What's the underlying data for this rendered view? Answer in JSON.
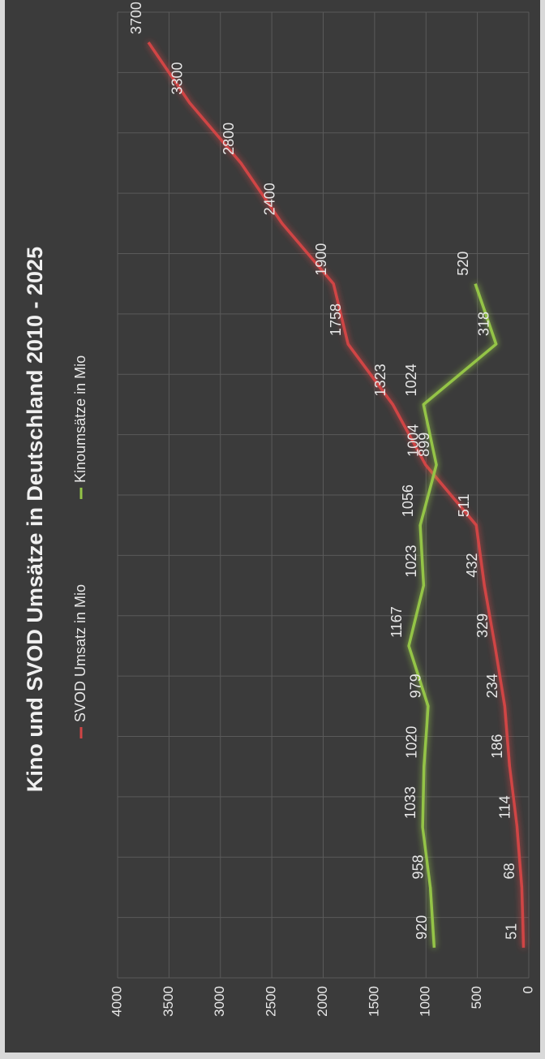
{
  "chart_data": {
    "type": "line",
    "title": "Kino und SVOD Umsätze in Deutschland 2010 - 2025",
    "categories": [
      null,
      null,
      null,
      null,
      null,
      null,
      null,
      null,
      null,
      null,
      null,
      null,
      null,
      null,
      null,
      null
    ],
    "series": [
      {
        "name": "SVOD Umsatz in Mio",
        "color": "#d04545",
        "values": [
          51,
          68,
          114,
          186,
          234,
          329,
          432,
          511,
          1004,
          1323,
          1758,
          1900,
          2400,
          2800,
          3300,
          3700
        ]
      },
      {
        "name": "Kinoumsätze in Mio",
        "color": "#94c447",
        "values": [
          920,
          958,
          1033,
          1020,
          979,
          1167,
          1023,
          1056,
          899,
          1024,
          318,
          520,
          null,
          null,
          null,
          null
        ]
      }
    ],
    "ylim": [
      0,
      4000
    ],
    "yticks": [
      0,
      500,
      1000,
      1500,
      2000,
      2500,
      3000,
      3500,
      4000
    ],
    "grid": true
  }
}
